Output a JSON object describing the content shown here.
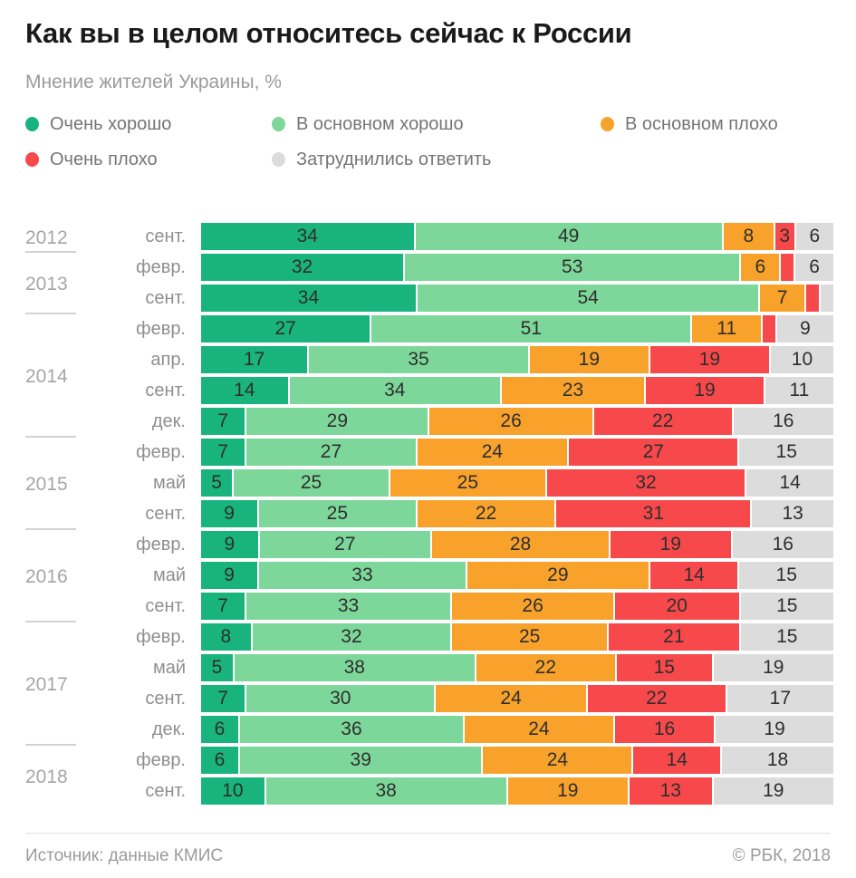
{
  "title": "Как вы в целом относитесь сейчас к России",
  "subtitle": "Мнение жителей Украины, %",
  "legend": {
    "rows": [
      [
        {
          "label": "Очень хорошо",
          "color": "#19b47e"
        },
        {
          "label": "В основном хорошо",
          "color": "#7dd79a"
        },
        {
          "label": "В основном плохо",
          "color": "#f8a22c"
        }
      ],
      [
        {
          "label": "Очень плохо",
          "color": "#f7494b"
        },
        {
          "label": "Затруднились ответить",
          "color": "#dcdcdc"
        }
      ]
    ]
  },
  "chart_data": {
    "type": "bar",
    "stacked": true,
    "orientation": "horizontal",
    "unit": "%",
    "series_names": [
      "Очень хорошо",
      "В основном хорошо",
      "В основном плохо",
      "Очень плохо",
      "Затруднились ответить"
    ],
    "colors": [
      "#19b47e",
      "#7dd79a",
      "#f8a22c",
      "#f7494b",
      "#dcdcdc"
    ],
    "xlim": [
      0,
      100
    ],
    "label_min_value": 3,
    "groups": [
      {
        "year": "2012",
        "rows": [
          {
            "month": "сент.",
            "values": [
              34,
              49,
              8,
              3,
              6
            ]
          }
        ]
      },
      {
        "year": "2013",
        "rows": [
          {
            "month": "февр.",
            "values": [
              32,
              53,
              6,
              2,
              6
            ]
          },
          {
            "month": "сент.",
            "values": [
              34,
              54,
              7,
              2,
              2
            ]
          }
        ]
      },
      {
        "year": "2014",
        "rows": [
          {
            "month": "февр.",
            "values": [
              27,
              51,
              11,
              2,
              9
            ]
          },
          {
            "month": "апр.",
            "values": [
              17,
              35,
              19,
              19,
              10
            ]
          },
          {
            "month": "сент.",
            "values": [
              14,
              34,
              23,
              19,
              11
            ]
          },
          {
            "month": "дек.",
            "values": [
              7,
              29,
              26,
              22,
              16
            ]
          }
        ]
      },
      {
        "year": "2015",
        "rows": [
          {
            "month": "февр.",
            "values": [
              7,
              27,
              24,
              27,
              15
            ]
          },
          {
            "month": "май",
            "values": [
              5,
              25,
              25,
              32,
              14
            ]
          },
          {
            "month": "сент.",
            "values": [
              9,
              25,
              22,
              31,
              13
            ]
          }
        ]
      },
      {
        "year": "2016",
        "rows": [
          {
            "month": "февр.",
            "values": [
              9,
              27,
              28,
              19,
              16
            ]
          },
          {
            "month": "май",
            "values": [
              9,
              33,
              29,
              14,
              15
            ]
          },
          {
            "month": "сент.",
            "values": [
              7,
              33,
              26,
              20,
              15
            ]
          }
        ]
      },
      {
        "year": "2017",
        "rows": [
          {
            "month": "февр.",
            "values": [
              8,
              32,
              25,
              21,
              15
            ]
          },
          {
            "month": "май",
            "values": [
              5,
              38,
              22,
              15,
              19
            ]
          },
          {
            "month": "сент.",
            "values": [
              7,
              30,
              24,
              22,
              17
            ]
          },
          {
            "month": "дек.",
            "values": [
              6,
              36,
              24,
              16,
              19
            ]
          }
        ]
      },
      {
        "year": "2018",
        "rows": [
          {
            "month": "февр.",
            "values": [
              6,
              39,
              24,
              14,
              18
            ]
          },
          {
            "month": "сент.",
            "values": [
              10,
              38,
              19,
              13,
              19
            ]
          }
        ]
      }
    ]
  },
  "footer": {
    "source": "Источник: данные КМИС",
    "copyright": "© РБК, 2018"
  }
}
